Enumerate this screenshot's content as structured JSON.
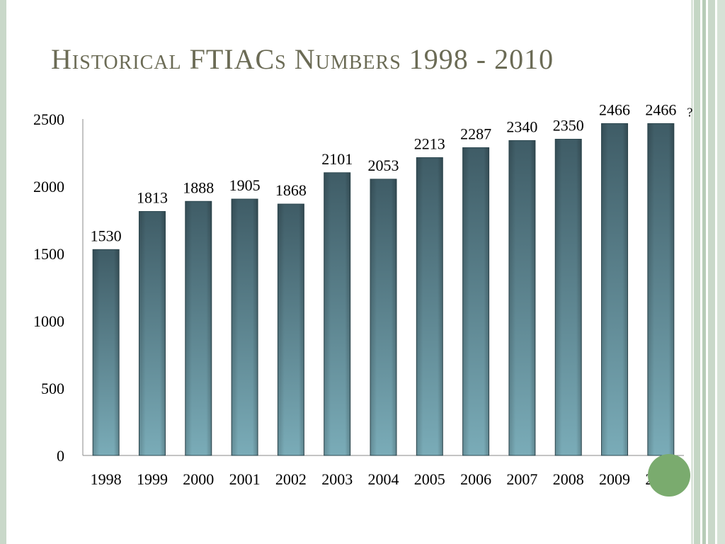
{
  "slide": {
    "title": "Historical FTIACs Numbers 1998 - 2010",
    "annotation": "?"
  },
  "colors": {
    "bar_top": "#3f5c66",
    "bar_bottom": "#7aacb8",
    "title": "#6b6b55",
    "accent_circle": "#7aab6e",
    "frame": "#c9d8c9"
  },
  "chart_data": {
    "type": "bar",
    "title": "Historical FTIACs Numbers 1998 - 2010",
    "categories": [
      "1998",
      "1999",
      "2000",
      "2001",
      "2002",
      "2003",
      "2004",
      "2005",
      "2006",
      "2007",
      "2008",
      "2009",
      "2010"
    ],
    "values": [
      1530,
      1813,
      1888,
      1905,
      1868,
      2101,
      2053,
      2213,
      2287,
      2340,
      2350,
      2466,
      2466
    ],
    "ylim": [
      0,
      2500
    ],
    "yticks": [
      0,
      500,
      1000,
      1500,
      2000,
      2500
    ],
    "data_labels": true,
    "grid": false,
    "legend": "none",
    "xlabel": "",
    "ylabel": ""
  }
}
